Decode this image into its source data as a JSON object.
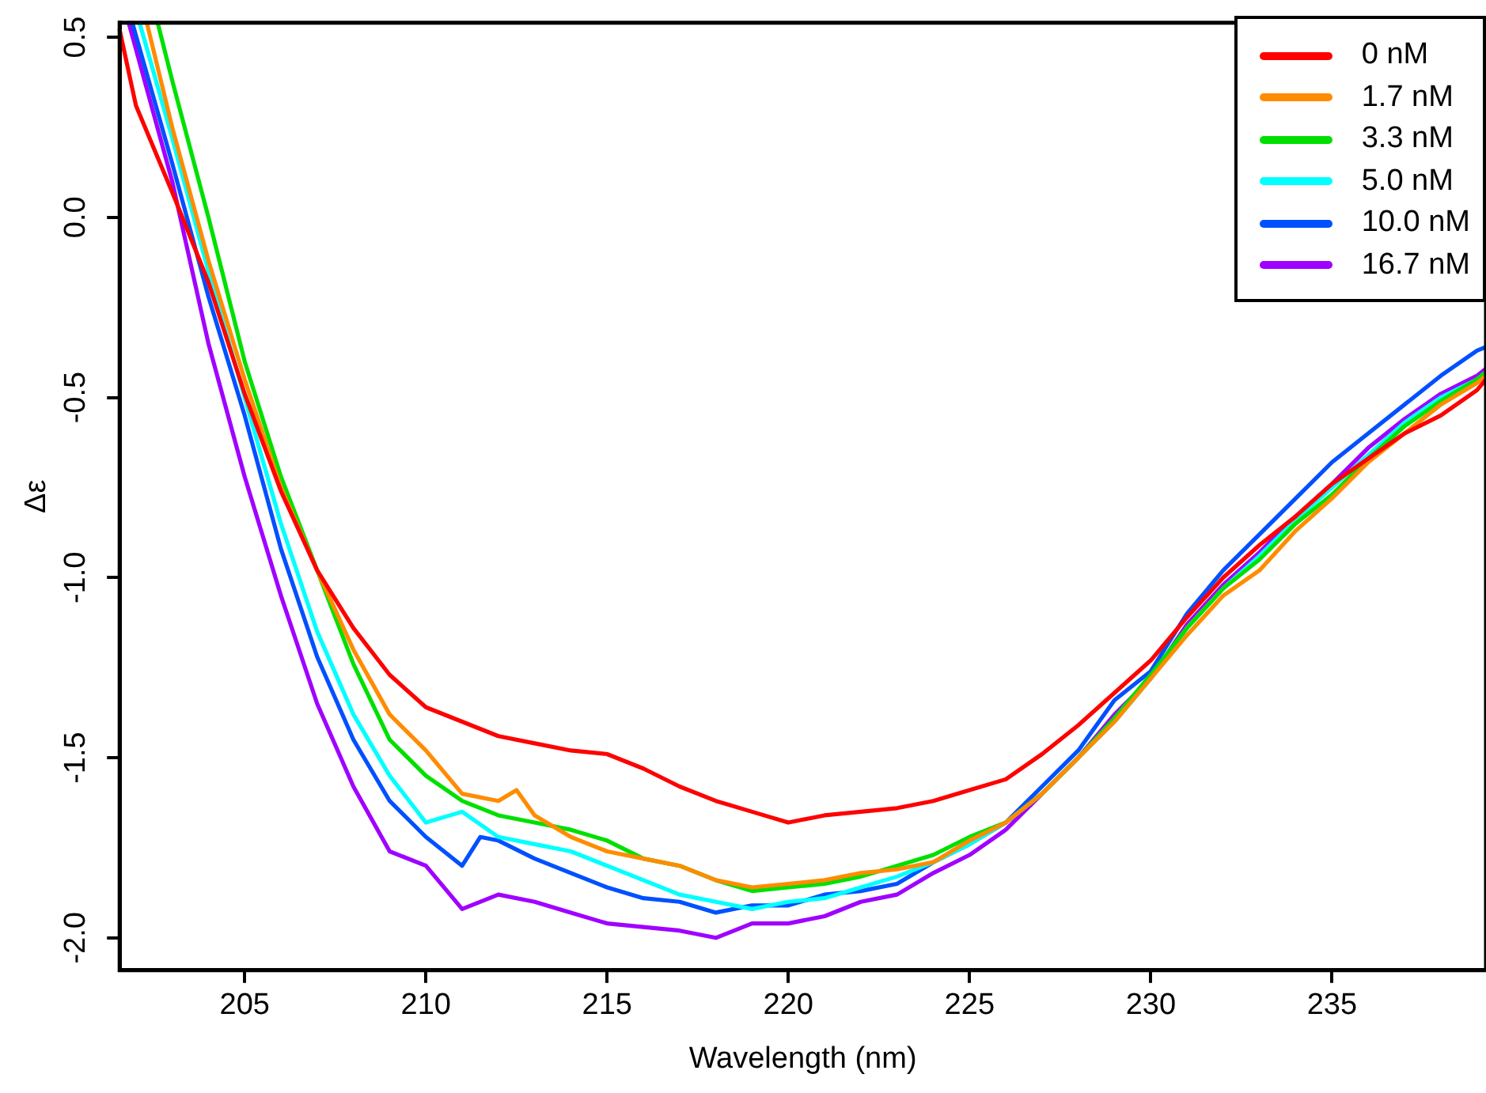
{
  "chart_data": {
    "type": "line",
    "xlabel": "Wavelength (nm)",
    "ylabel": "Δε",
    "xlim": [
      201.55,
      239.25
    ],
    "ylim": [
      -2.09,
      0.54
    ],
    "xticks": [
      205,
      210,
      215,
      220,
      225,
      230,
      235
    ],
    "yticks": [
      {
        "value": 0.5,
        "label": "0.5"
      },
      {
        "value": 0,
        "label": "0.0"
      },
      {
        "value": -0.5,
        "label": "-0.5"
      },
      {
        "value": -1,
        "label": "-1.0"
      },
      {
        "value": -1.5,
        "label": "-1.5"
      },
      {
        "value": -2,
        "label": "-2.0"
      }
    ],
    "grid": false,
    "legend": "top right",
    "marker": "none",
    "line_style": "solid",
    "series": [
      {
        "name": "0 nM",
        "color": "#ff0000",
        "x": [
          201.55,
          202,
          203,
          204,
          205,
          206,
          207,
          208,
          209,
          210,
          211,
          212,
          213,
          214,
          215,
          216,
          217,
          218,
          219,
          220,
          221,
          222,
          223,
          224,
          225,
          226,
          227,
          228,
          229,
          230,
          231,
          232,
          233,
          234,
          235,
          236,
          237,
          238,
          239,
          239.25
        ],
        "values": [
          0.52,
          0.31,
          0.07,
          -0.18,
          -0.49,
          -0.76,
          -0.98,
          -1.14,
          -1.27,
          -1.36,
          -1.4,
          -1.44,
          -1.46,
          -1.48,
          -1.49,
          -1.53,
          -1.58,
          -1.62,
          -1.65,
          -1.68,
          -1.66,
          -1.65,
          -1.64,
          -1.62,
          -1.59,
          -1.56,
          -1.49,
          -1.41,
          -1.32,
          -1.23,
          -1.11,
          -1.0,
          -0.91,
          -0.83,
          -0.74,
          -0.67,
          -0.6,
          -0.55,
          -0.48,
          -0.45
        ]
      },
      {
        "name": "1.7 nM",
        "color": "#ff8c00",
        "x": [
          202.3,
          203,
          204,
          205,
          206,
          207,
          208,
          209,
          210,
          211,
          212,
          212.5,
          213,
          214,
          215,
          216,
          217,
          218,
          219,
          220,
          221,
          222,
          223,
          224,
          225,
          226,
          227,
          228,
          229,
          230,
          231,
          232,
          233,
          234,
          235,
          236,
          237,
          238,
          239,
          239.25
        ],
        "values": [
          0.54,
          0.25,
          -0.12,
          -0.45,
          -0.75,
          -0.98,
          -1.2,
          -1.38,
          -1.48,
          -1.6,
          -1.62,
          -1.59,
          -1.66,
          -1.72,
          -1.76,
          -1.78,
          -1.8,
          -1.84,
          -1.86,
          -1.85,
          -1.84,
          -1.82,
          -1.81,
          -1.79,
          -1.73,
          -1.68,
          -1.6,
          -1.5,
          -1.4,
          -1.28,
          -1.16,
          -1.05,
          -0.98,
          -0.87,
          -0.78,
          -0.68,
          -0.6,
          -0.52,
          -0.46,
          -0.44
        ]
      },
      {
        "name": "3.3 nM",
        "color": "#00e000",
        "x": [
          202.6,
          203,
          204,
          205,
          206,
          207,
          208,
          209,
          210,
          211,
          212,
          213,
          214,
          215,
          216,
          217,
          218,
          219,
          220,
          221,
          222,
          223,
          224,
          225,
          226,
          227,
          228,
          229,
          230,
          231,
          232,
          233,
          234,
          235,
          236,
          237,
          238,
          239,
          239.25
        ],
        "values": [
          0.54,
          0.38,
          0.0,
          -0.4,
          -0.72,
          -0.98,
          -1.24,
          -1.45,
          -1.55,
          -1.62,
          -1.66,
          -1.68,
          -1.7,
          -1.73,
          -1.78,
          -1.8,
          -1.84,
          -1.87,
          -1.86,
          -1.85,
          -1.83,
          -1.8,
          -1.77,
          -1.72,
          -1.68,
          -1.6,
          -1.5,
          -1.39,
          -1.27,
          -1.14,
          -1.03,
          -0.95,
          -0.85,
          -0.77,
          -0.67,
          -0.58,
          -0.51,
          -0.45,
          -0.43
        ]
      },
      {
        "name": "5.0 nM",
        "color": "#00ffff",
        "x": [
          202.1,
          203,
          204,
          205,
          206,
          207,
          208,
          209,
          210,
          211,
          212,
          213,
          214,
          215,
          216,
          217,
          218,
          219,
          220,
          221,
          222,
          223,
          224,
          225,
          226,
          227,
          228,
          229,
          230,
          231,
          232,
          233,
          234,
          235,
          236,
          237,
          238,
          239,
          239.25
        ],
        "values": [
          0.54,
          0.22,
          -0.15,
          -0.5,
          -0.85,
          -1.15,
          -1.38,
          -1.55,
          -1.68,
          -1.65,
          -1.72,
          -1.74,
          -1.76,
          -1.8,
          -1.84,
          -1.88,
          -1.9,
          -1.92,
          -1.9,
          -1.89,
          -1.86,
          -1.83,
          -1.79,
          -1.74,
          -1.68,
          -1.6,
          -1.5,
          -1.4,
          -1.28,
          -1.14,
          -1.03,
          -0.94,
          -0.84,
          -0.75,
          -0.66,
          -0.57,
          -0.5,
          -0.45,
          -0.43
        ]
      },
      {
        "name": "10.0 nM",
        "color": "#0050ff",
        "x": [
          201.9,
          203,
          204,
          205,
          206,
          207,
          208,
          209,
          210,
          211,
          211.5,
          212,
          213,
          214,
          215,
          216,
          217,
          218,
          219,
          220,
          221,
          222,
          223,
          224,
          225,
          226,
          227,
          228,
          229,
          230,
          231,
          232,
          233,
          234,
          235,
          236,
          237,
          238,
          239,
          239.25
        ],
        "values": [
          0.54,
          0.15,
          -0.22,
          -0.55,
          -0.92,
          -1.22,
          -1.45,
          -1.62,
          -1.72,
          -1.8,
          -1.72,
          -1.73,
          -1.78,
          -1.82,
          -1.86,
          -1.89,
          -1.9,
          -1.93,
          -1.91,
          -1.91,
          -1.88,
          -1.87,
          -1.85,
          -1.79,
          -1.74,
          -1.68,
          -1.58,
          -1.48,
          -1.34,
          -1.26,
          -1.1,
          -0.98,
          -0.88,
          -0.78,
          -0.68,
          -0.6,
          -0.52,
          -0.44,
          -0.37,
          -0.36
        ]
      },
      {
        "name": "16.7 nM",
        "color": "#a000ff",
        "x": [
          201.8,
          203,
          204,
          205,
          206,
          207,
          208,
          209,
          210,
          211,
          212,
          213,
          214,
          215,
          216,
          217,
          218,
          219,
          220,
          221,
          222,
          223,
          224,
          225,
          226,
          227,
          228,
          229,
          230,
          231,
          232,
          233,
          234,
          235,
          236,
          237,
          238,
          239,
          239.25
        ],
        "values": [
          0.54,
          0.1,
          -0.35,
          -0.72,
          -1.05,
          -1.35,
          -1.58,
          -1.76,
          -1.8,
          -1.92,
          -1.88,
          -1.9,
          -1.93,
          -1.96,
          -1.97,
          -1.98,
          -2.0,
          -1.96,
          -1.96,
          -1.94,
          -1.9,
          -1.88,
          -1.82,
          -1.77,
          -1.7,
          -1.6,
          -1.5,
          -1.38,
          -1.28,
          -1.13,
          -1.02,
          -0.93,
          -0.83,
          -0.74,
          -0.64,
          -0.56,
          -0.49,
          -0.44,
          -0.42
        ]
      }
    ]
  }
}
